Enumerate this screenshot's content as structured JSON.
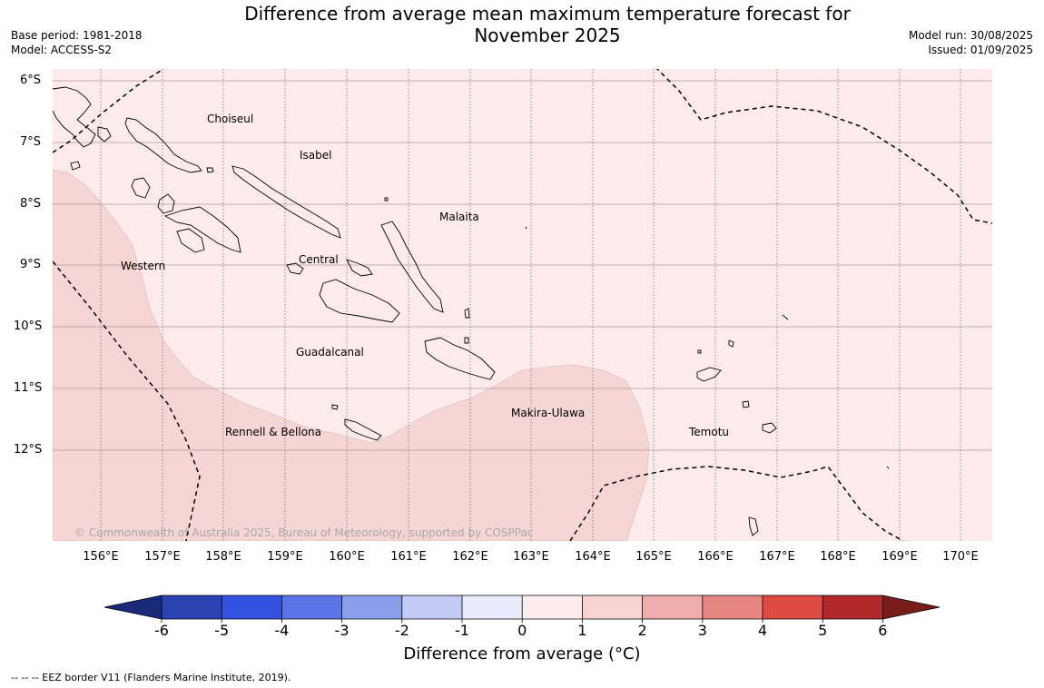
{
  "header": {
    "title_line1": "Difference from average mean maximum temperature forecast for",
    "title_line2": "November 2025",
    "base_period": "Base period: 1981-2018",
    "model": "Model: ACCESS-S2",
    "model_run": "Model run: 30/08/2025",
    "issued": "Issued: 01/09/2025"
  },
  "map": {
    "lat_labels": [
      "6°S",
      "7°S",
      "8°S",
      "9°S",
      "10°S",
      "11°S",
      "12°S"
    ],
    "lon_labels": [
      "156°E",
      "157°E",
      "158°E",
      "159°E",
      "160°E",
      "161°E",
      "162°E",
      "163°E",
      "164°E",
      "165°E",
      "166°E",
      "167°E",
      "168°E",
      "169°E",
      "170°E"
    ],
    "regions": {
      "choiseul": "Choiseul",
      "isabel": "Isabel",
      "malaita": "Malaita",
      "western": "Western",
      "central": "Central",
      "guadalcanal": "Guadalcanal",
      "makira": "Makira-Ulawa",
      "rennell": "Rennell & Bellona",
      "temotu": "Temotu"
    },
    "copyright": "© Commonwealth of Australia 2025, Bureau of Meteorology, supported by COSPPac",
    "fill_colors": {
      "range_0_1": "#fcebea",
      "range_1_2": "#f5d6d4"
    }
  },
  "colorbar": {
    "ticks": [
      "-6",
      "-5",
      "-4",
      "-3",
      "-2",
      "-1",
      "0",
      "1",
      "2",
      "3",
      "4",
      "5",
      "6"
    ],
    "colors": [
      "#1a2a78",
      "#2a43b0",
      "#3352e0",
      "#5a75e8",
      "#8a9eee",
      "#c3caf4",
      "#e8ebfb",
      "#fdecec",
      "#f7d3d2",
      "#eeaeac",
      "#e68680",
      "#dc4a40",
      "#b0282a",
      "#7a1c1c"
    ],
    "label": "Difference from average (°C)"
  },
  "footer": {
    "eez_note": "--  --  -- EEZ border V11 (Flanders Marine Institute, 2019)."
  }
}
